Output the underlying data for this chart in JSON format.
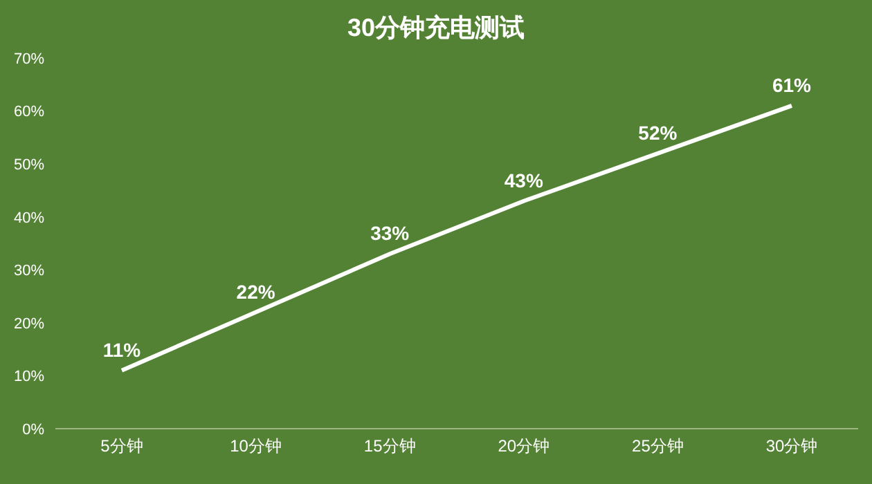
{
  "chart_data": {
    "type": "line",
    "title": "30分钟充电测试",
    "categories": [
      "5分钟",
      "10分钟",
      "15分钟",
      "20分钟",
      "25分钟",
      "30分钟"
    ],
    "series": [
      {
        "color": "#ffffff",
        "values": [
          11,
          22,
          33,
          43,
          52,
          61
        ],
        "value_labels": [
          "11%",
          "22%",
          "33%",
          "43%",
          "52%",
          "61%"
        ]
      }
    ],
    "ylim": [
      0,
      70
    ],
    "yticks": [
      {
        "value": 0,
        "label": "0%"
      },
      {
        "value": 10,
        "label": "10%"
      },
      {
        "value": 20,
        "label": "20%"
      },
      {
        "value": 30,
        "label": "30%"
      },
      {
        "value": 40,
        "label": "40%"
      },
      {
        "value": 50,
        "label": "50%"
      },
      {
        "value": 60,
        "label": "60%"
      },
      {
        "value": 70,
        "label": "70%"
      }
    ],
    "grid": false,
    "legend": false,
    "marker": "none",
    "line_style": "solid"
  }
}
